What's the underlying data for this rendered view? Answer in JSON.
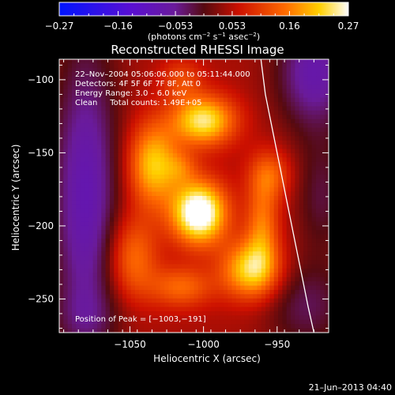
{
  "chart_data": {
    "type": "heatmap",
    "title": "Reconstructed RHESSI Image",
    "xlabel": "Heliocentric X (arcsec)",
    "ylabel": "Heliocentric Y (arcsec)",
    "xlim": [
      -1098,
      -915
    ],
    "ylim": [
      -273,
      -86
    ],
    "xticks": [
      -1050,
      -1000,
      -950
    ],
    "xtick_labels": [
      "−1050",
      "−1000",
      "−950"
    ],
    "yticks": [
      -100,
      -150,
      -200,
      -250
    ],
    "ytick_labels": [
      "−100",
      "−150",
      "−200",
      "−250"
    ],
    "colorbar": {
      "range": [
        -0.27,
        0.27
      ],
      "ticks": [
        -0.27,
        -0.16,
        -0.053,
        0.053,
        0.16,
        0.27
      ],
      "tick_labels": [
        "−0.27",
        "−0.16",
        "−0.053",
        "0.053",
        "0.16",
        "0.27"
      ],
      "unit_label_parts": [
        "(photons cm",
        "−2",
        " s",
        "−1",
        " asec",
        "−2",
        ")"
      ]
    },
    "annotations": [
      "22–Nov–2004 05:06:06.000 to 05:11:44.000",
      "Detectors: 4F 5F 6F 7F 8F, Att 0",
      "Energy Range: 3.0 – 6.0 keV",
      "Clean     Total counts: 1.49E+05"
    ],
    "peak_label": "Position of Peak = [−1003,−191]",
    "peak": {
      "x": -1003,
      "y": -191
    },
    "limb_curve": [
      {
        "x": -961,
        "y": -86
      },
      {
        "x": -958,
        "y": -110
      },
      {
        "x": -953,
        "y": -135
      },
      {
        "x": -948,
        "y": -160
      },
      {
        "x": -943,
        "y": -185
      },
      {
        "x": -938,
        "y": -210
      },
      {
        "x": -933,
        "y": -235
      },
      {
        "x": -929,
        "y": -255
      },
      {
        "x": -925,
        "y": -273
      }
    ],
    "sources": [
      {
        "x": -1003,
        "y": -191,
        "sx": 13,
        "sy": 15,
        "amp": 0.27
      },
      {
        "x": -1000,
        "y": -128,
        "sx": 15,
        "sy": 12,
        "amp": 0.2
      },
      {
        "x": -1034,
        "y": -158,
        "sx": 12,
        "sy": 20,
        "amp": 0.17
      },
      {
        "x": -1015,
        "y": -160,
        "sx": 8,
        "sy": 8,
        "amp": 0.06
      },
      {
        "x": -968,
        "y": -230,
        "sx": 14,
        "sy": 14,
        "amp": 0.18
      },
      {
        "x": -960,
        "y": -200,
        "sx": 8,
        "sy": 22,
        "amp": 0.11
      },
      {
        "x": -1015,
        "y": -242,
        "sx": 15,
        "sy": 10,
        "amp": 0.1
      },
      {
        "x": -1048,
        "y": -222,
        "sx": 12,
        "sy": 20,
        "amp": 0.11
      },
      {
        "x": -955,
        "y": -165,
        "sx": 10,
        "sy": 12,
        "amp": 0.09
      },
      {
        "x": -1015,
        "y": -100,
        "sx": 10,
        "sy": 10,
        "amp": 0.07
      }
    ],
    "background_level": 0.045,
    "minima": [
      {
        "x": -1080,
        "y": -180,
        "sx": 16,
        "sy": 75,
        "amp": 0.13
      },
      {
        "x": -925,
        "y": -95,
        "sx": 18,
        "sy": 28,
        "amp": 0.12
      },
      {
        "x": -920,
        "y": -180,
        "sx": 12,
        "sy": 28,
        "amp": 0.06
      },
      {
        "x": -930,
        "y": -255,
        "sx": 20,
        "sy": 22,
        "amp": 0.07
      },
      {
        "x": -1080,
        "y": -262,
        "sx": 18,
        "sy": 14,
        "amp": 0.03
      }
    ]
  },
  "footer": {
    "timestamp": "21–Jun–2013 04:40"
  }
}
